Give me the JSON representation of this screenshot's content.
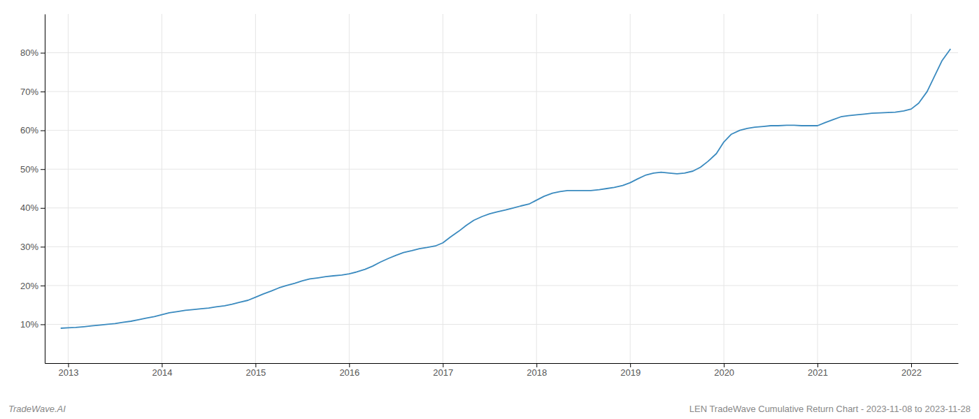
{
  "chart_data": {
    "type": "line",
    "title": "LEN TradeWave Cumulative Return Chart - 2023-11-08 to 2023-11-28",
    "annotations": [
      "TradeWave.AI"
    ],
    "color": "#3a8abf",
    "grid": true,
    "x": [
      2012.92,
      2013.0,
      2013.08,
      2013.17,
      2013.25,
      2013.33,
      2013.42,
      2013.5,
      2013.58,
      2013.67,
      2013.75,
      2013.83,
      2013.92,
      2014.0,
      2014.08,
      2014.17,
      2014.25,
      2014.33,
      2014.42,
      2014.5,
      2014.58,
      2014.67,
      2014.75,
      2014.83,
      2014.92,
      2015.0,
      2015.08,
      2015.17,
      2015.25,
      2015.33,
      2015.42,
      2015.5,
      2015.58,
      2015.67,
      2015.75,
      2015.83,
      2015.92,
      2016.0,
      2016.08,
      2016.17,
      2016.25,
      2016.33,
      2016.42,
      2016.5,
      2016.58,
      2016.67,
      2016.75,
      2016.83,
      2016.92,
      2017.0,
      2017.08,
      2017.17,
      2017.25,
      2017.33,
      2017.42,
      2017.5,
      2017.58,
      2017.67,
      2017.75,
      2017.83,
      2017.92,
      2018.0,
      2018.08,
      2018.17,
      2018.25,
      2018.33,
      2018.42,
      2018.5,
      2018.58,
      2018.67,
      2018.75,
      2018.83,
      2018.92,
      2019.0,
      2019.08,
      2019.17,
      2019.25,
      2019.33,
      2019.42,
      2019.5,
      2019.58,
      2019.67,
      2019.75,
      2019.83,
      2019.92,
      2020.0,
      2020.08,
      2020.17,
      2020.25,
      2020.33,
      2020.42,
      2020.5,
      2020.58,
      2020.67,
      2020.75,
      2020.83,
      2020.92,
      2021.0,
      2021.08,
      2021.17,
      2021.25,
      2021.33,
      2021.42,
      2021.5,
      2021.58,
      2021.67,
      2021.75,
      2021.83,
      2021.92,
      2022.0,
      2022.08,
      2022.17,
      2022.25,
      2022.33,
      2022.42
    ],
    "values": [
      9.0,
      9.1,
      9.2,
      9.4,
      9.6,
      9.8,
      10.0,
      10.2,
      10.5,
      10.8,
      11.2,
      11.6,
      12.0,
      12.5,
      13.0,
      13.3,
      13.6,
      13.8,
      14.0,
      14.2,
      14.5,
      14.8,
      15.2,
      15.7,
      16.2,
      17.0,
      17.8,
      18.6,
      19.4,
      20.0,
      20.6,
      21.2,
      21.7,
      22.0,
      22.3,
      22.5,
      22.7,
      23.0,
      23.5,
      24.2,
      25.0,
      26.0,
      27.0,
      27.8,
      28.5,
      29.0,
      29.5,
      29.8,
      30.2,
      31.0,
      32.5,
      34.0,
      35.5,
      36.8,
      37.8,
      38.5,
      39.0,
      39.5,
      40.0,
      40.5,
      41.0,
      42.0,
      43.0,
      43.8,
      44.2,
      44.5,
      44.5,
      44.5,
      44.5,
      44.7,
      45.0,
      45.3,
      45.8,
      46.5,
      47.5,
      48.5,
      49.0,
      49.2,
      49.0,
      48.8,
      49.0,
      49.5,
      50.5,
      52.0,
      54.0,
      57.0,
      59.0,
      60.0,
      60.5,
      60.8,
      61.0,
      61.2,
      61.2,
      61.3,
      61.3,
      61.2,
      61.2,
      61.2,
      62.0,
      62.8,
      63.5,
      63.8,
      64.0,
      64.2,
      64.4,
      64.5,
      64.6,
      64.7,
      65.0,
      65.5,
      67.0,
      70.0,
      74.0,
      78.0,
      81.0
    ],
    "xlim": [
      2012.75,
      2022.5
    ],
    "xticks": [
      2013,
      2014,
      2015,
      2016,
      2017,
      2018,
      2019,
      2020,
      2021,
      2022
    ],
    "ylim": [
      0,
      90
    ],
    "yticks": [
      {
        "value": 10,
        "label": "10%"
      },
      {
        "value": 20,
        "label": "20%"
      },
      {
        "value": 30,
        "label": "30%"
      },
      {
        "value": 40,
        "label": "40%"
      },
      {
        "value": 50,
        "label": "50%"
      },
      {
        "value": 60,
        "label": "60%"
      },
      {
        "value": 70,
        "label": "70%"
      },
      {
        "value": 80,
        "label": "80%"
      }
    ]
  }
}
